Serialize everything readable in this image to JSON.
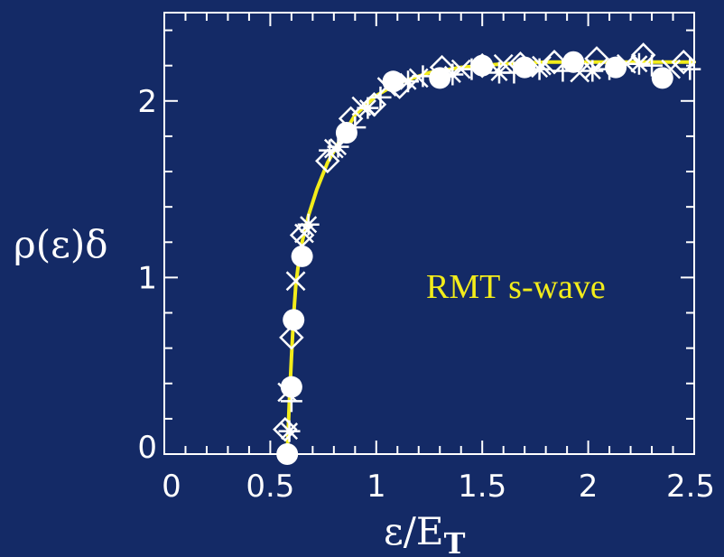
{
  "chart_data": {
    "type": "scatter",
    "xlabel": "ε/E",
    "xlabel_sub": "T",
    "ylabel": "ρ(ε)δ",
    "xlim": [
      0,
      2.5
    ],
    "ylim": [
      0,
      2.5
    ],
    "x_ticks": [
      "0",
      "0.5",
      "1",
      "1.5",
      "2",
      "2.5"
    ],
    "y_ticks": [
      "0",
      "1",
      "2"
    ],
    "grid": false,
    "legend": "none",
    "annotation": "RMT s-wave",
    "colors": {
      "background": "#142a66",
      "axes": "#ffffff",
      "curve": "#f2ec1a",
      "markers": "#ffffff"
    },
    "curve": {
      "name": "RMT s-wave",
      "x": [
        0.58,
        0.585,
        0.59,
        0.6,
        0.61,
        0.62,
        0.63,
        0.65,
        0.68,
        0.72,
        0.77,
        0.83,
        0.9,
        1.0,
        1.1,
        1.25,
        1.4,
        1.6,
        1.8,
        2.0,
        2.2,
        2.4,
        2.5
      ],
      "y": [
        0.0,
        0.15,
        0.3,
        0.55,
        0.78,
        0.95,
        1.05,
        1.2,
        1.35,
        1.5,
        1.65,
        1.78,
        1.92,
        2.03,
        2.1,
        2.16,
        2.19,
        2.21,
        2.22,
        2.22,
        2.22,
        2.22,
        2.22
      ]
    },
    "series": [
      {
        "marker": "circle",
        "x": [
          0.58,
          0.6,
          0.61,
          0.65,
          0.86,
          1.08,
          1.3,
          1.5,
          1.7,
          1.93,
          2.13,
          2.35
        ],
        "y": [
          0.0,
          0.38,
          0.76,
          1.12,
          1.82,
          2.11,
          2.13,
          2.2,
          2.19,
          2.22,
          2.19,
          2.13
        ]
      },
      {
        "marker": "diamond",
        "x": [
          0.57,
          0.6,
          0.65,
          0.77,
          0.88,
          0.99,
          1.11,
          1.31,
          1.5,
          1.68,
          1.84,
          2.04,
          2.26,
          2.45
        ],
        "y": [
          0.14,
          0.66,
          1.24,
          1.66,
          1.9,
          1.98,
          2.08,
          2.19,
          2.2,
          2.21,
          2.22,
          2.24,
          2.26,
          2.22
        ]
      },
      {
        "marker": "cross",
        "x": [
          0.58,
          0.62,
          0.66,
          0.8,
          0.93,
          1.05,
          1.2,
          1.4,
          1.6,
          1.78,
          1.96,
          2.18,
          2.39
        ],
        "y": [
          0.35,
          0.98,
          1.25,
          1.73,
          1.97,
          2.08,
          2.13,
          2.18,
          2.21,
          2.2,
          2.16,
          2.21,
          2.18
        ]
      },
      {
        "marker": "asterisk",
        "x": [
          0.59,
          0.68,
          0.82,
          0.96,
          1.15,
          1.36,
          1.58,
          1.77,
          2.02,
          2.24
        ],
        "y": [
          0.13,
          1.3,
          1.74,
          1.96,
          2.11,
          2.15,
          2.16,
          2.18,
          2.17,
          2.21
        ]
      },
      {
        "marker": "plus",
        "x": [
          0.6,
          0.78,
          0.9,
          1.02,
          1.22,
          1.45,
          1.65,
          1.88,
          2.1,
          2.3,
          2.48
        ],
        "y": [
          0.3,
          1.72,
          1.85,
          2.02,
          2.14,
          2.18,
          2.16,
          2.17,
          2.18,
          2.2,
          2.18
        ]
      }
    ]
  }
}
